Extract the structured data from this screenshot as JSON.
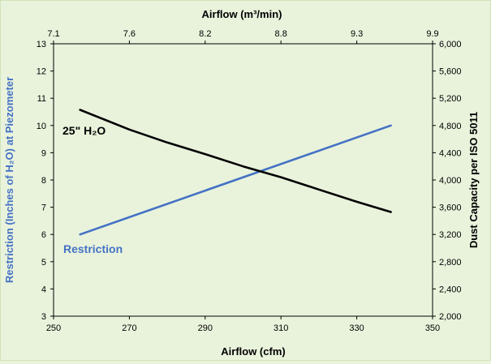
{
  "chart_data": {
    "type": "line",
    "title": "",
    "colors": {
      "background": "#e9f3dc",
      "restriction": "#4472c4",
      "dust_capacity": "#000000",
      "axis": "#000000",
      "ylabel_left_color": "#4472c4"
    },
    "grid": false,
    "legend": "none",
    "xlabel": "Airflow (cfm)",
    "x_top_label": "Airflow (m³/min)",
    "ylabel_left": "Restriction (Inches of H₂O) at Piezometer",
    "ylabel_right": "Dust Capacity per ISO 5011",
    "xlim": [
      250,
      350
    ],
    "x_top_lim": [
      7.1,
      9.9
    ],
    "ylim_left": [
      3,
      13
    ],
    "ylim_right": [
      2000,
      6000
    ],
    "x_ticks": [
      "250",
      "270",
      "290",
      "310",
      "330",
      "350"
    ],
    "x_top_ticks": [
      "7.1",
      "7.6",
      "8.2",
      "8.8",
      "9.3",
      "9.9"
    ],
    "y_left_ticks": [
      "3",
      "4",
      "5",
      "6",
      "7",
      "8",
      "9",
      "10",
      "11",
      "12",
      "13"
    ],
    "y_right_ticks": [
      "2,000",
      "2,400",
      "2,800",
      "3,200",
      "3,600",
      "4,000",
      "4,400",
      "4,800",
      "5,200",
      "5,600",
      "6,000"
    ],
    "series": [
      {
        "name": "Restriction",
        "axis": "left",
        "x": [
          257,
          339
        ],
        "y": [
          6,
          10
        ]
      },
      {
        "name": "25\" H₂O",
        "axis": "right",
        "x": [
          257,
          270,
          280,
          290,
          300,
          310,
          320,
          330,
          339
        ],
        "y": [
          5030,
          4740,
          4550,
          4380,
          4200,
          4040,
          3860,
          3680,
          3530
        ]
      }
    ]
  }
}
